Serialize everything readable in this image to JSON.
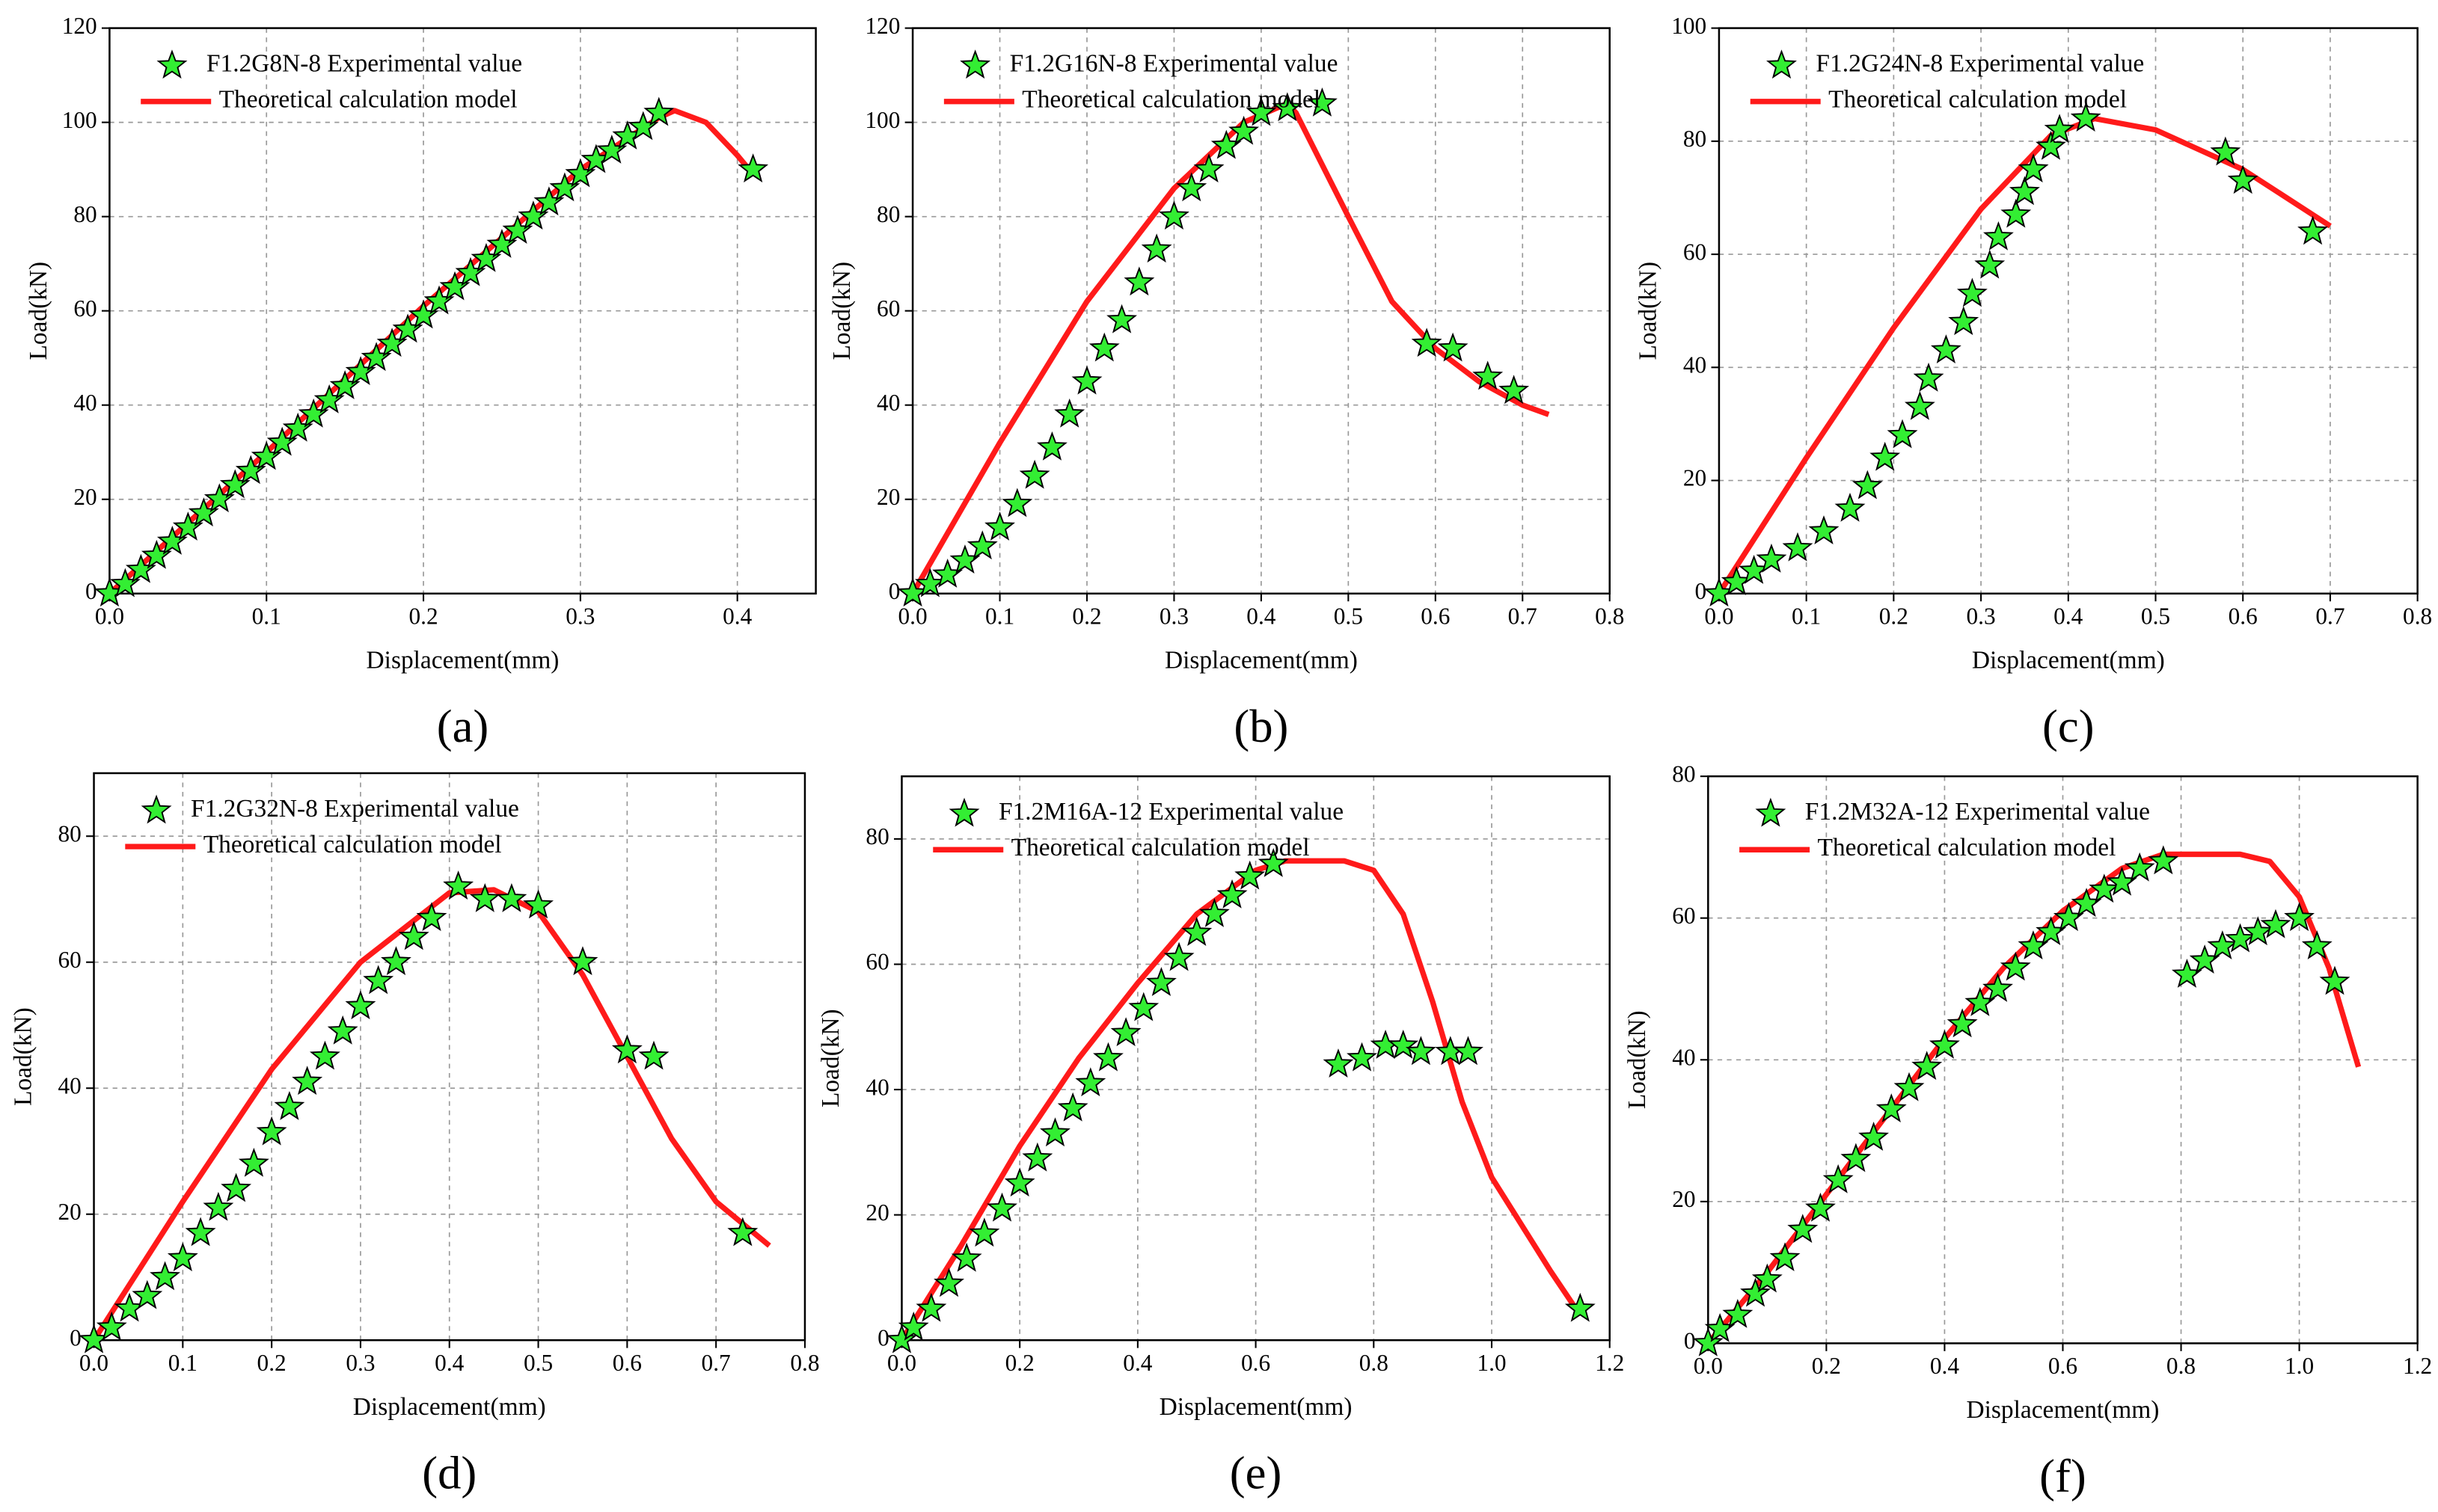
{
  "chart_data": [
    {
      "type": "line",
      "panel_label": "(a)",
      "xlabel": "Displacement(mm)",
      "ylabel": "Load(kN)",
      "grid": true,
      "xlim": [
        0,
        0.45
      ],
      "ylim": [
        0,
        120
      ],
      "xticks": [
        {
          "value": 0,
          "label": "0.0"
        },
        0.1,
        0.2,
        0.3,
        0.4
      ],
      "yticks": [
        0,
        20,
        40,
        60,
        80,
        100,
        120
      ],
      "series": [
        {
          "name": "F1.2G8N-8 Experimental value",
          "type": "scatter",
          "color": "#33ee33",
          "x": [
            0,
            0.01,
            0.02,
            0.03,
            0.04,
            0.05,
            0.06,
            0.07,
            0.08,
            0.09,
            0.1,
            0.11,
            0.12,
            0.13,
            0.14,
            0.15,
            0.16,
            0.17,
            0.18,
            0.19,
            0.2,
            0.21,
            0.22,
            0.23,
            0.24,
            0.25,
            0.26,
            0.27,
            0.28,
            0.29,
            0.3,
            0.31,
            0.32,
            0.33,
            0.34,
            0.35,
            0.41
          ],
          "values": [
            0,
            2,
            5,
            8,
            11,
            14,
            17,
            20,
            23,
            26,
            29,
            32,
            35,
            38,
            41,
            44,
            47,
            50,
            53,
            56,
            59,
            62,
            65,
            68,
            71,
            74,
            77,
            80,
            83,
            86,
            89,
            92,
            94,
            97,
            99,
            102,
            90
          ]
        },
        {
          "name": "Theoretical calculation model",
          "type": "line",
          "color": "#ff1a1a",
          "x": [
            0,
            0.1,
            0.2,
            0.3,
            0.35,
            0.36,
            0.38,
            0.4,
            0.41
          ],
          "values": [
            0,
            30,
            61,
            90,
            101,
            102.5,
            100,
            93,
            89
          ]
        }
      ]
    },
    {
      "type": "line",
      "panel_label": "(b)",
      "xlabel": "Displacement(mm)",
      "ylabel": "Load(kN)",
      "grid": true,
      "xlim": [
        0,
        0.8
      ],
      "ylim": [
        0,
        120
      ],
      "xticks": [
        {
          "value": 0,
          "label": "0.0"
        },
        0.1,
        0.2,
        0.3,
        0.4,
        0.5,
        0.6,
        0.7,
        0.8
      ],
      "yticks": [
        0,
        20,
        40,
        60,
        80,
        100,
        120
      ],
      "series": [
        {
          "name": "F1.2G16N-8 Experimental value",
          "type": "scatter",
          "color": "#33ee33",
          "x": [
            0,
            0.02,
            0.04,
            0.06,
            0.08,
            0.1,
            0.12,
            0.14,
            0.16,
            0.18,
            0.2,
            0.22,
            0.24,
            0.26,
            0.28,
            0.3,
            0.32,
            0.34,
            0.36,
            0.38,
            0.4,
            0.43,
            0.47,
            0.59,
            0.62,
            0.66,
            0.69
          ],
          "values": [
            0,
            2,
            4,
            7,
            10,
            14,
            19,
            25,
            31,
            38,
            45,
            52,
            58,
            66,
            73,
            80,
            86,
            90,
            95,
            98,
            102,
            103,
            104,
            53,
            52,
            46,
            43
          ]
        },
        {
          "name": "Theoretical calculation model",
          "type": "line",
          "color": "#ff1a1a",
          "x": [
            0,
            0.1,
            0.2,
            0.3,
            0.38,
            0.43,
            0.44,
            0.5,
            0.55,
            0.6,
            0.65,
            0.7,
            0.73
          ],
          "values": [
            0,
            32,
            62,
            86,
            100,
            104,
            102,
            80,
            62,
            52,
            45,
            40,
            38
          ]
        }
      ]
    },
    {
      "type": "line",
      "panel_label": "(c)",
      "xlabel": "Displacement(mm)",
      "ylabel": "Load(kN)",
      "grid": true,
      "xlim": [
        0,
        0.8
      ],
      "ylim": [
        0,
        100
      ],
      "xticks": [
        {
          "value": 0,
          "label": "0.0"
        },
        0.1,
        0.2,
        0.3,
        0.4,
        0.5,
        0.6,
        0.7,
        0.8
      ],
      "yticks": [
        0,
        20,
        40,
        60,
        80,
        100
      ],
      "series": [
        {
          "name": "F1.2G24N-8 Experimental value",
          "type": "scatter",
          "color": "#33ee33",
          "x": [
            0,
            0.02,
            0.04,
            0.06,
            0.09,
            0.12,
            0.15,
            0.17,
            0.19,
            0.21,
            0.23,
            0.24,
            0.26,
            0.28,
            0.29,
            0.31,
            0.32,
            0.34,
            0.35,
            0.36,
            0.38,
            0.39,
            0.42,
            0.58,
            0.6,
            0.68
          ],
          "values": [
            0,
            2,
            4,
            6,
            8,
            11,
            15,
            19,
            24,
            28,
            33,
            38,
            43,
            48,
            53,
            58,
            63,
            67,
            71,
            75,
            79,
            82,
            84,
            78,
            73,
            64
          ]
        },
        {
          "name": "Theoretical calculation model",
          "type": "line",
          "color": "#ff1a1a",
          "x": [
            0,
            0.1,
            0.2,
            0.3,
            0.38,
            0.43,
            0.5,
            0.6,
            0.7
          ],
          "values": [
            0,
            24,
            47,
            68,
            81,
            84,
            82,
            75,
            65
          ]
        }
      ]
    },
    {
      "type": "line",
      "panel_label": "(d)",
      "xlabel": "Displacement(mm)",
      "ylabel": "Load(kN)",
      "grid": true,
      "xlim": [
        0,
        0.8
      ],
      "ylim": [
        0,
        90
      ],
      "xticks": [
        {
          "value": 0,
          "label": "0.0"
        },
        0.1,
        0.2,
        0.3,
        0.4,
        0.5,
        0.6,
        0.7,
        0.8
      ],
      "yticks": [
        0,
        20,
        40,
        60,
        80
      ],
      "series": [
        {
          "name": "F1.2G32N-8 Experimental value",
          "type": "scatter",
          "color": "#33ee33",
          "x": [
            0,
            0.02,
            0.04,
            0.06,
            0.08,
            0.1,
            0.12,
            0.14,
            0.16,
            0.18,
            0.2,
            0.22,
            0.24,
            0.26,
            0.28,
            0.3,
            0.32,
            0.34,
            0.36,
            0.38,
            0.41,
            0.44,
            0.47,
            0.5,
            0.55,
            0.6,
            0.63,
            0.73
          ],
          "values": [
            0,
            2,
            5,
            7,
            10,
            13,
            17,
            21,
            24,
            28,
            33,
            37,
            41,
            45,
            49,
            53,
            57,
            60,
            64,
            67,
            72,
            70,
            70,
            69,
            60,
            46,
            45,
            17
          ]
        },
        {
          "name": "Theoretical calculation model",
          "type": "line",
          "color": "#ff1a1a",
          "x": [
            0,
            0.1,
            0.2,
            0.3,
            0.4,
            0.45,
            0.5,
            0.55,
            0.6,
            0.65,
            0.7,
            0.76
          ],
          "values": [
            0,
            22,
            43,
            60,
            71,
            71.5,
            68,
            58,
            45,
            32,
            22,
            15
          ]
        }
      ]
    },
    {
      "type": "line",
      "panel_label": "(e)",
      "xlabel": "Displacement(mm)",
      "ylabel": "Load(kN)",
      "grid": true,
      "xlim": [
        0,
        1.2
      ],
      "ylim": [
        0,
        90
      ],
      "xticks": [
        {
          "value": 0,
          "label": "0.0"
        },
        0.2,
        0.4,
        0.6,
        0.8,
        {
          "value": 1,
          "label": "1.0"
        },
        1.2
      ],
      "yticks": [
        0,
        20,
        40,
        60,
        80
      ],
      "series": [
        {
          "name": "F1.2M16A-12 Experimental value",
          "type": "scatter",
          "color": "#33ee33",
          "x": [
            0,
            0.02,
            0.05,
            0.08,
            0.11,
            0.14,
            0.17,
            0.2,
            0.23,
            0.26,
            0.29,
            0.32,
            0.35,
            0.38,
            0.41,
            0.44,
            0.47,
            0.5,
            0.53,
            0.56,
            0.59,
            0.63,
            0.74,
            0.78,
            0.82,
            0.85,
            0.88,
            0.93,
            0.96,
            1.15
          ],
          "values": [
            0,
            2,
            5,
            9,
            13,
            17,
            21,
            25,
            29,
            33,
            37,
            41,
            45,
            49,
            53,
            57,
            61,
            65,
            68,
            71,
            74,
            76,
            44,
            45,
            47,
            47,
            46,
            46,
            46,
            5
          ]
        },
        {
          "name": "Theoretical calculation model",
          "type": "line",
          "color": "#ff1a1a",
          "x": [
            0,
            0.1,
            0.2,
            0.3,
            0.4,
            0.5,
            0.6,
            0.65,
            0.75,
            0.8,
            0.85,
            0.9,
            0.95,
            1,
            1.1,
            1.15
          ],
          "values": [
            0,
            15,
            31,
            45,
            57,
            68,
            75,
            76.5,
            76.5,
            75,
            68,
            54,
            38,
            26,
            11,
            4
          ]
        }
      ]
    },
    {
      "type": "line",
      "panel_label": "(f)",
      "xlabel": "Displacement(mm)",
      "ylabel": "Load(kN)",
      "grid": true,
      "xlim": [
        0,
        1.2
      ],
      "ylim": [
        0,
        80
      ],
      "xticks": [
        {
          "value": 0,
          "label": "0.0"
        },
        0.2,
        0.4,
        0.6,
        0.8,
        {
          "value": 1,
          "label": "1.0"
        },
        1.2
      ],
      "yticks": [
        0,
        20,
        40,
        60,
        80
      ],
      "series": [
        {
          "name": "F1.2M32A-12 Experimental value",
          "type": "scatter",
          "color": "#33ee33",
          "x": [
            0,
            0.02,
            0.05,
            0.08,
            0.1,
            0.13,
            0.16,
            0.19,
            0.22,
            0.25,
            0.28,
            0.31,
            0.34,
            0.37,
            0.4,
            0.43,
            0.46,
            0.49,
            0.52,
            0.55,
            0.58,
            0.61,
            0.64,
            0.67,
            0.7,
            0.73,
            0.77,
            0.81,
            0.84,
            0.87,
            0.9,
            0.93,
            0.96,
            1,
            1.03,
            1.06
          ],
          "values": [
            0,
            2,
            4,
            7,
            9,
            12,
            16,
            19,
            23,
            26,
            29,
            33,
            36,
            39,
            42,
            45,
            48,
            50,
            53,
            56,
            58,
            60,
            62,
            64,
            65,
            67,
            68,
            52,
            54,
            56,
            57,
            58,
            59,
            60,
            56,
            51
          ]
        },
        {
          "name": "Theoretical calculation model",
          "type": "line",
          "color": "#ff1a1a",
          "x": [
            0,
            0.1,
            0.2,
            0.3,
            0.4,
            0.5,
            0.6,
            0.7,
            0.77,
            0.9,
            0.95,
            1,
            1.05,
            1.1
          ],
          "values": [
            0,
            10,
            21,
            32,
            43,
            53,
            61,
            67,
            69,
            69,
            68,
            63,
            53,
            39
          ]
        }
      ]
    }
  ]
}
